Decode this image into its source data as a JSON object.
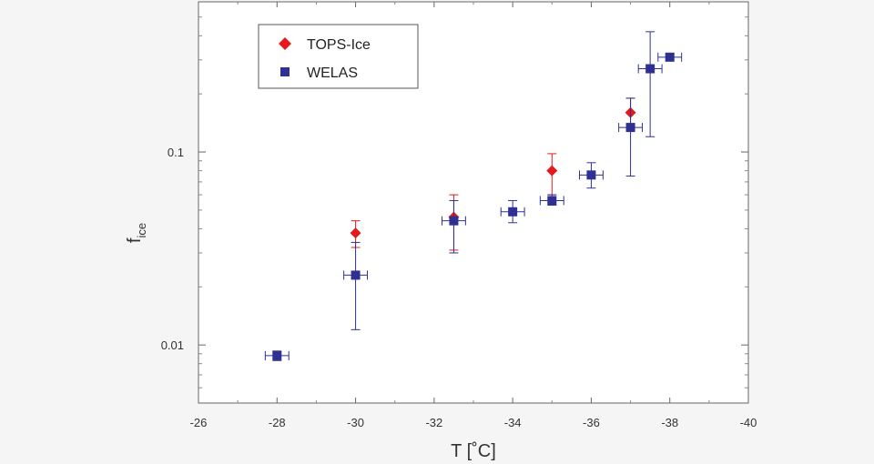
{
  "chart_data": {
    "type": "scatter",
    "xlabel": "T [˚C]",
    "ylabel_main": "f",
    "ylabel_sub": "ice",
    "x_ticks": [
      -26,
      -28,
      -30,
      -32,
      -34,
      -36,
      -38,
      -40
    ],
    "x_tick_labels": [
      "-26",
      "-28",
      "-30",
      "-32",
      "-34",
      "-36",
      "-38",
      "-40"
    ],
    "xlim": [
      -26,
      -40
    ],
    "y_scale": "log",
    "ylim": [
      0.005,
      0.6
    ],
    "y_ticks": [
      0.01,
      0.1
    ],
    "y_tick_labels": [
      "0.01",
      "0.1"
    ],
    "legend_position": "top-left",
    "series": [
      {
        "name": "TOPS-Ice",
        "marker": "diamond",
        "color": "#e41a1c",
        "points": [
          {
            "x": -30,
            "y": 0.038,
            "yerr_low": 0.032,
            "yerr_high": 0.044
          },
          {
            "x": -32.5,
            "y": 0.046,
            "yerr_low": 0.031,
            "yerr_high": 0.06
          },
          {
            "x": -35,
            "y": 0.08,
            "yerr_low": 0.06,
            "yerr_high": 0.098
          },
          {
            "x": -37,
            "y": 0.16,
            "yerr_low": 0.13,
            "yerr_high": 0.19
          }
        ]
      },
      {
        "name": "WELAS",
        "marker": "square",
        "color": "#2e3192",
        "points": [
          {
            "x": -28,
            "y": 0.0088,
            "xerr": 0.3,
            "yerr_low": 0.0083,
            "yerr_high": 0.0093
          },
          {
            "x": -30,
            "y": 0.023,
            "xerr": 0.3,
            "yerr_low": 0.012,
            "yerr_high": 0.034
          },
          {
            "x": -32.5,
            "y": 0.044,
            "xerr": 0.3,
            "yerr_low": 0.03,
            "yerr_high": 0.056
          },
          {
            "x": -34,
            "y": 0.049,
            "xerr": 0.3,
            "yerr_low": 0.043,
            "yerr_high": 0.056
          },
          {
            "x": -35,
            "y": 0.056,
            "xerr": 0.3,
            "yerr_low": 0.053,
            "yerr_high": 0.06
          },
          {
            "x": -36,
            "y": 0.076,
            "xerr": 0.3,
            "yerr_low": 0.065,
            "yerr_high": 0.088
          },
          {
            "x": -37,
            "y": 0.134,
            "xerr": 0.3,
            "yerr_low": 0.075,
            "yerr_high": 0.19
          },
          {
            "x": -37.5,
            "y": 0.27,
            "xerr": 0.3,
            "yerr_low": 0.12,
            "yerr_high": 0.42
          },
          {
            "x": -38,
            "y": 0.31,
            "xerr": 0.3,
            "yerr_low": 0.3,
            "yerr_high": 0.32
          }
        ]
      }
    ]
  }
}
